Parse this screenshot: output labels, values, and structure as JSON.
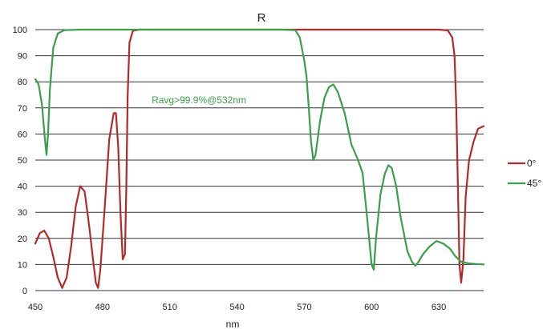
{
  "chart_data": {
    "type": "line",
    "title": "R",
    "xlabel": "nm",
    "ylabel": "",
    "xlim": [
      450,
      650
    ],
    "ylim": [
      0,
      100
    ],
    "x_ticks": [
      450,
      480,
      510,
      540,
      570,
      600,
      630
    ],
    "y_ticks": [
      0,
      10,
      20,
      30,
      40,
      50,
      60,
      70,
      80,
      90,
      100
    ],
    "grid": "horizontal",
    "legend_position": "right",
    "annotation": {
      "text": "Ravg>99.9%@532nm",
      "x": 523,
      "y": 73,
      "color": "#3aa04a"
    },
    "series": [
      {
        "name": "0°",
        "color": "#b22a2a",
        "points": [
          [
            450,
            18
          ],
          [
            452,
            22
          ],
          [
            454,
            23
          ],
          [
            456,
            20
          ],
          [
            458,
            13
          ],
          [
            460,
            5
          ],
          [
            462,
            1
          ],
          [
            464,
            5
          ],
          [
            466,
            17
          ],
          [
            468,
            32
          ],
          [
            470,
            40
          ],
          [
            472,
            38
          ],
          [
            474,
            25
          ],
          [
            476,
            10
          ],
          [
            477,
            3
          ],
          [
            478,
            1
          ],
          [
            479,
            8
          ],
          [
            481,
            32
          ],
          [
            483,
            58
          ],
          [
            485,
            68
          ],
          [
            486,
            68
          ],
          [
            487,
            55
          ],
          [
            488,
            30
          ],
          [
            489,
            12
          ],
          [
            490,
            14
          ],
          [
            490.6,
            40
          ],
          [
            491.2,
            75
          ],
          [
            492,
            95
          ],
          [
            493.5,
            99.5
          ],
          [
            496,
            100
          ],
          [
            505,
            100
          ],
          [
            520,
            100
          ],
          [
            540,
            100
          ],
          [
            560,
            100
          ],
          [
            580,
            100
          ],
          [
            600,
            100
          ],
          [
            620,
            100
          ],
          [
            630,
            100
          ],
          [
            634,
            99.7
          ],
          [
            636,
            97
          ],
          [
            637,
            90
          ],
          [
            637.8,
            70
          ],
          [
            638.5,
            40
          ],
          [
            639.2,
            10
          ],
          [
            640,
            3
          ],
          [
            641,
            12
          ],
          [
            642,
            36
          ],
          [
            643.5,
            50
          ],
          [
            645.5,
            57
          ],
          [
            647.5,
            62
          ],
          [
            650,
            63
          ]
        ]
      },
      {
        "name": "45°",
        "color": "#3a9e4a",
        "points": [
          [
            450,
            81
          ],
          [
            451.5,
            79
          ],
          [
            453,
            71
          ],
          [
            454.3,
            58
          ],
          [
            455,
            52
          ],
          [
            455.7,
            60
          ],
          [
            456.5,
            77
          ],
          [
            458,
            93
          ],
          [
            460,
            98.5
          ],
          [
            463,
            99.8
          ],
          [
            470,
            100
          ],
          [
            490,
            100
          ],
          [
            510,
            100
          ],
          [
            540,
            100
          ],
          [
            560,
            100
          ],
          [
            566,
            99.8
          ],
          [
            568,
            97
          ],
          [
            570,
            88
          ],
          [
            571,
            82
          ],
          [
            572,
            70
          ],
          [
            573,
            57
          ],
          [
            574,
            50
          ],
          [
            575,
            52
          ],
          [
            577,
            65
          ],
          [
            579,
            74
          ],
          [
            581,
            78
          ],
          [
            583,
            79
          ],
          [
            585,
            76
          ],
          [
            588,
            68
          ],
          [
            591,
            56
          ],
          [
            594,
            50
          ],
          [
            596,
            45
          ],
          [
            598,
            28
          ],
          [
            600,
            10
          ],
          [
            601,
            8
          ],
          [
            602,
            20
          ],
          [
            604,
            37
          ],
          [
            606,
            45
          ],
          [
            607.5,
            48
          ],
          [
            609,
            47
          ],
          [
            611,
            40
          ],
          [
            613,
            28
          ],
          [
            616,
            15
          ],
          [
            618,
            11
          ],
          [
            619.5,
            9.5
          ],
          [
            621,
            11
          ],
          [
            623,
            14
          ],
          [
            626,
            17
          ],
          [
            629,
            19
          ],
          [
            632,
            18
          ],
          [
            635,
            16
          ],
          [
            637.5,
            13
          ],
          [
            640,
            11
          ],
          [
            643,
            10.5
          ],
          [
            646,
            10.2
          ],
          [
            650,
            10
          ]
        ]
      }
    ]
  }
}
